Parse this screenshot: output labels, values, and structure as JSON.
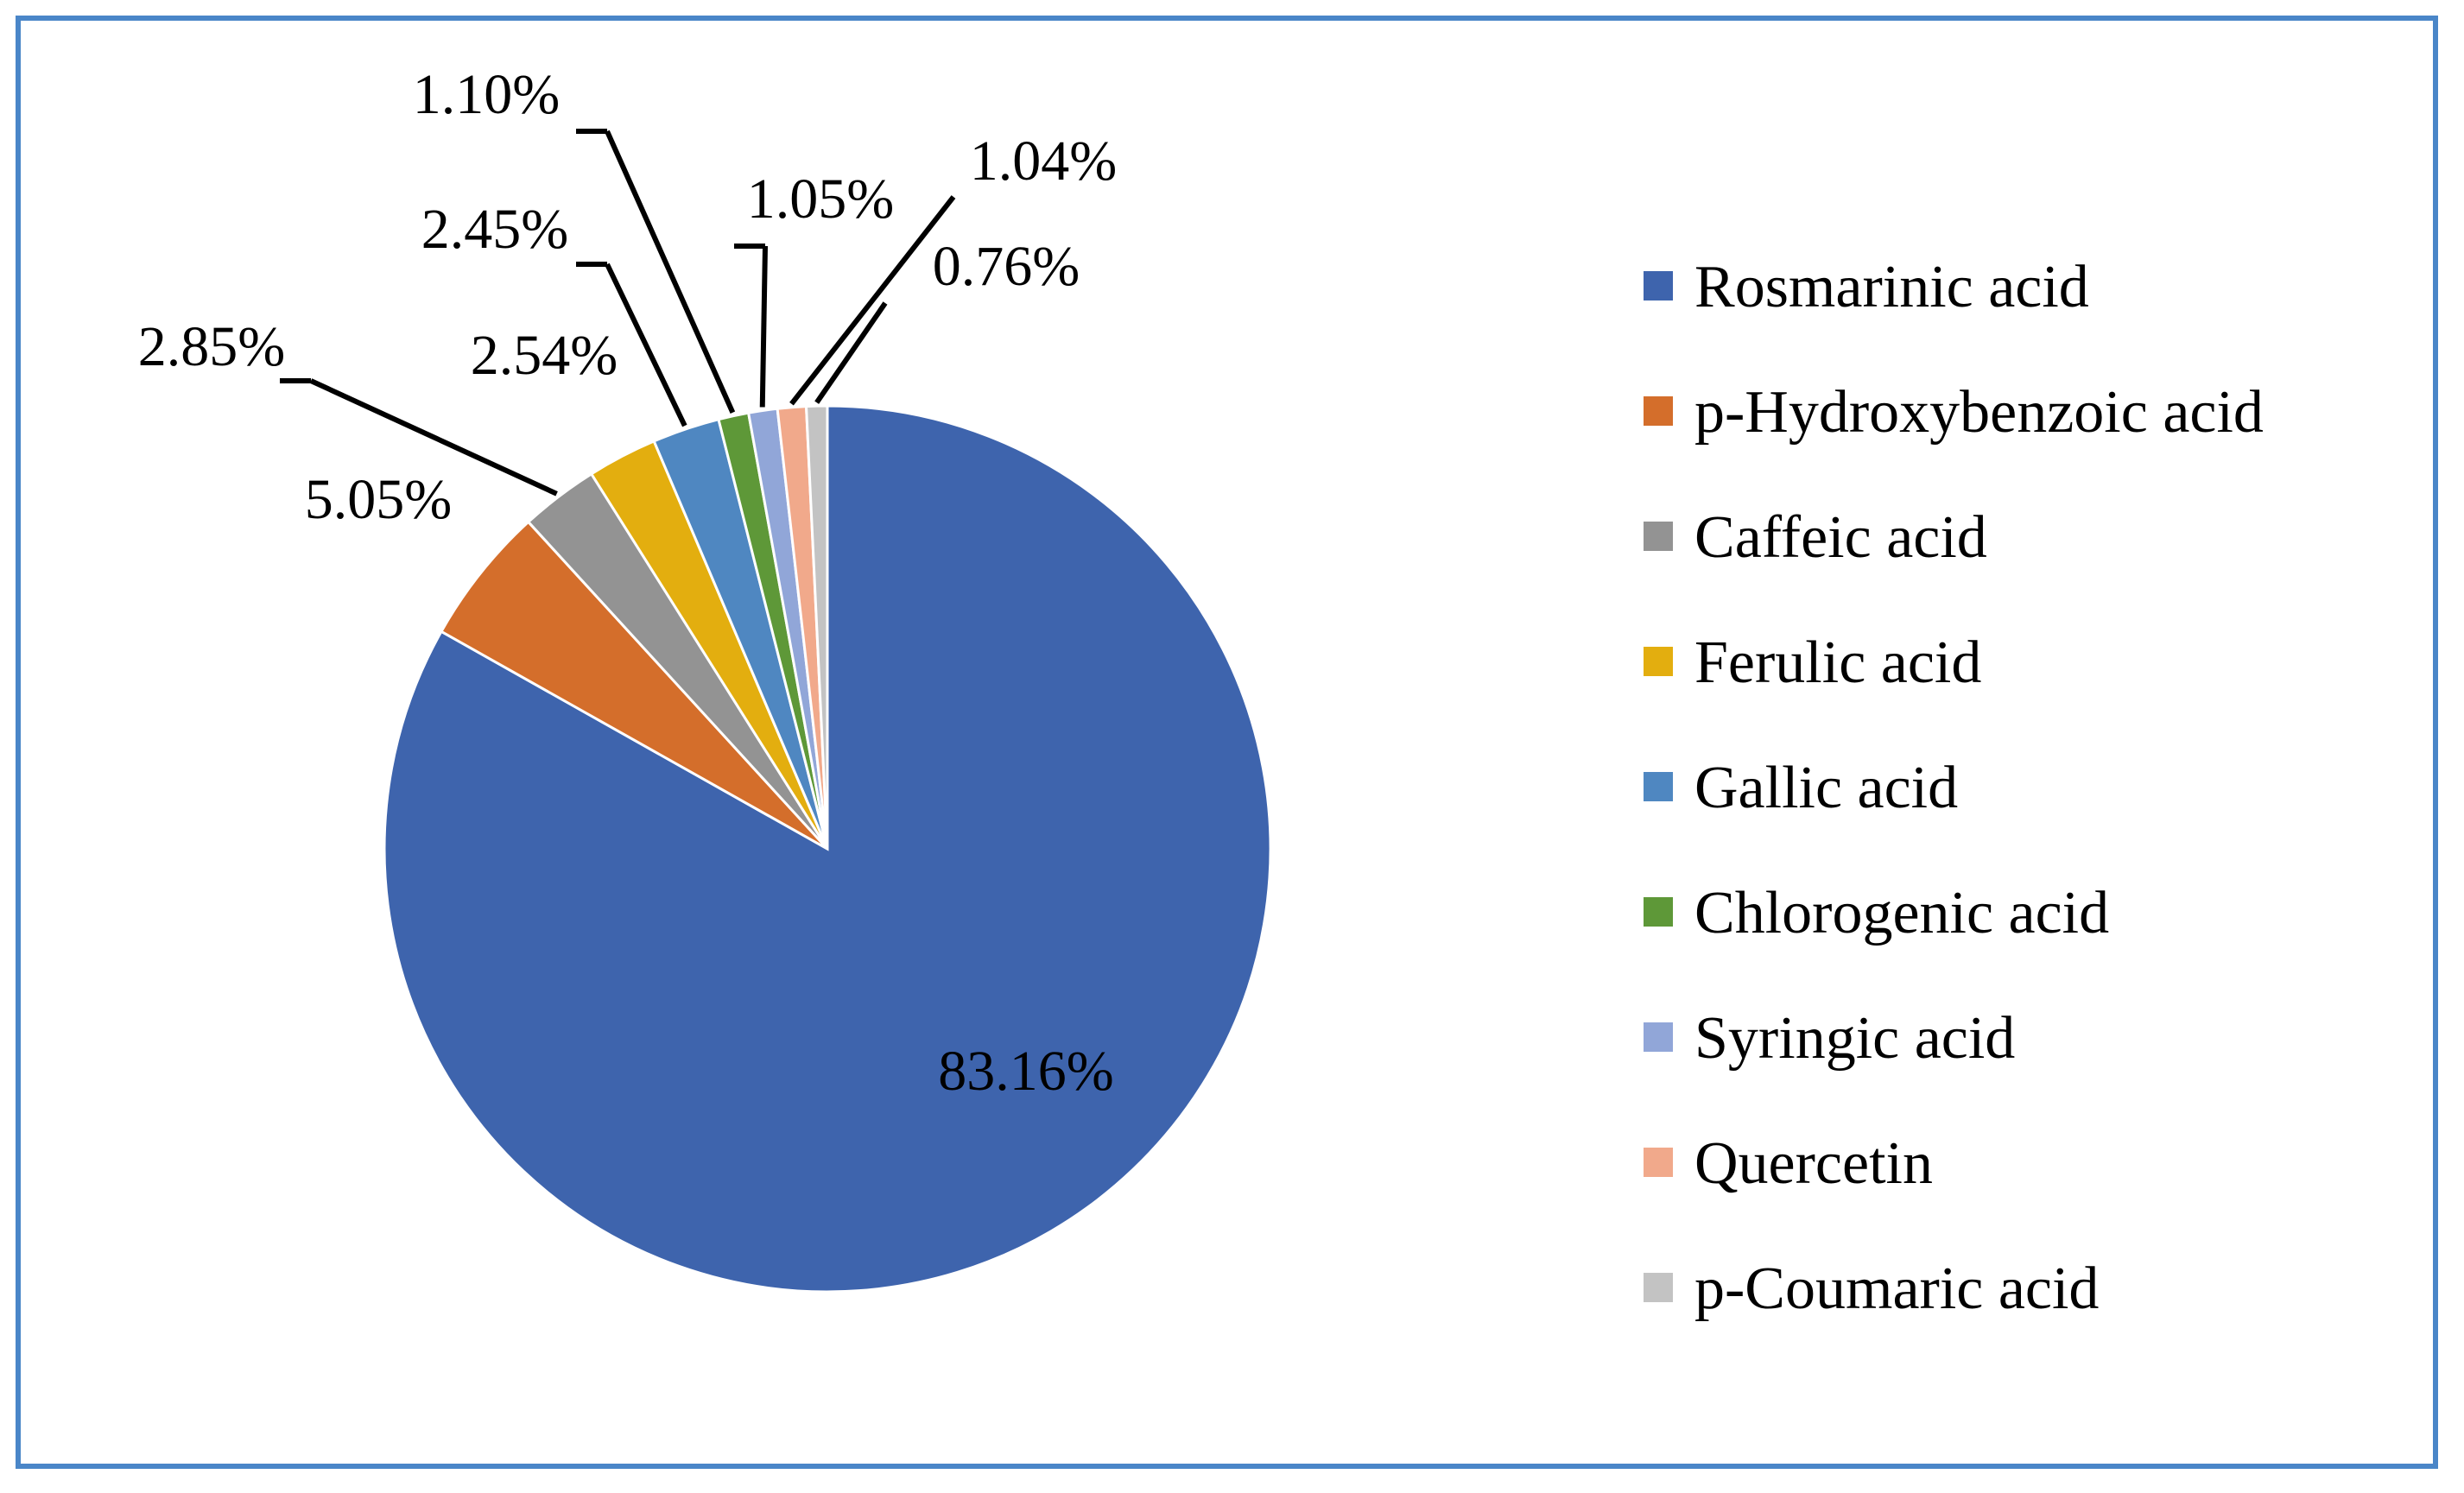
{
  "chart_data": {
    "type": "pie",
    "title": "",
    "legend_position": "right",
    "series": [
      {
        "name": "Rosmarinic acid",
        "value": 83.16,
        "label": "83.16%",
        "color": "#3e64ad"
      },
      {
        "name": "p-Hydroxybenzoic acid",
        "value": 5.05,
        "label": "5.05%",
        "color": "#d46e2b"
      },
      {
        "name": "Caffeic acid",
        "value": 2.85,
        "label": "2.85%",
        "color": "#939393"
      },
      {
        "name": "Ferulic acid",
        "value": 2.54,
        "label": "2.54%",
        "color": "#e3ae0f"
      },
      {
        "name": "Gallic acid",
        "value": 2.45,
        "label": "2.45%",
        "color": "#4f87c1"
      },
      {
        "name": "Chlorogenic acid",
        "value": 1.1,
        "label": "1.10%",
        "color": "#5e9838"
      },
      {
        "name": "Syringic acid",
        "value": 1.05,
        "label": "1.05%",
        "color": "#91a6d8"
      },
      {
        "name": "Quercetin",
        "value": 1.04,
        "label": "1.04%",
        "color": "#f1a98b"
      },
      {
        "name": "p-Coumaric acid",
        "value": 0.76,
        "label": "0.76%",
        "color": "#c3c3c3"
      }
    ]
  }
}
